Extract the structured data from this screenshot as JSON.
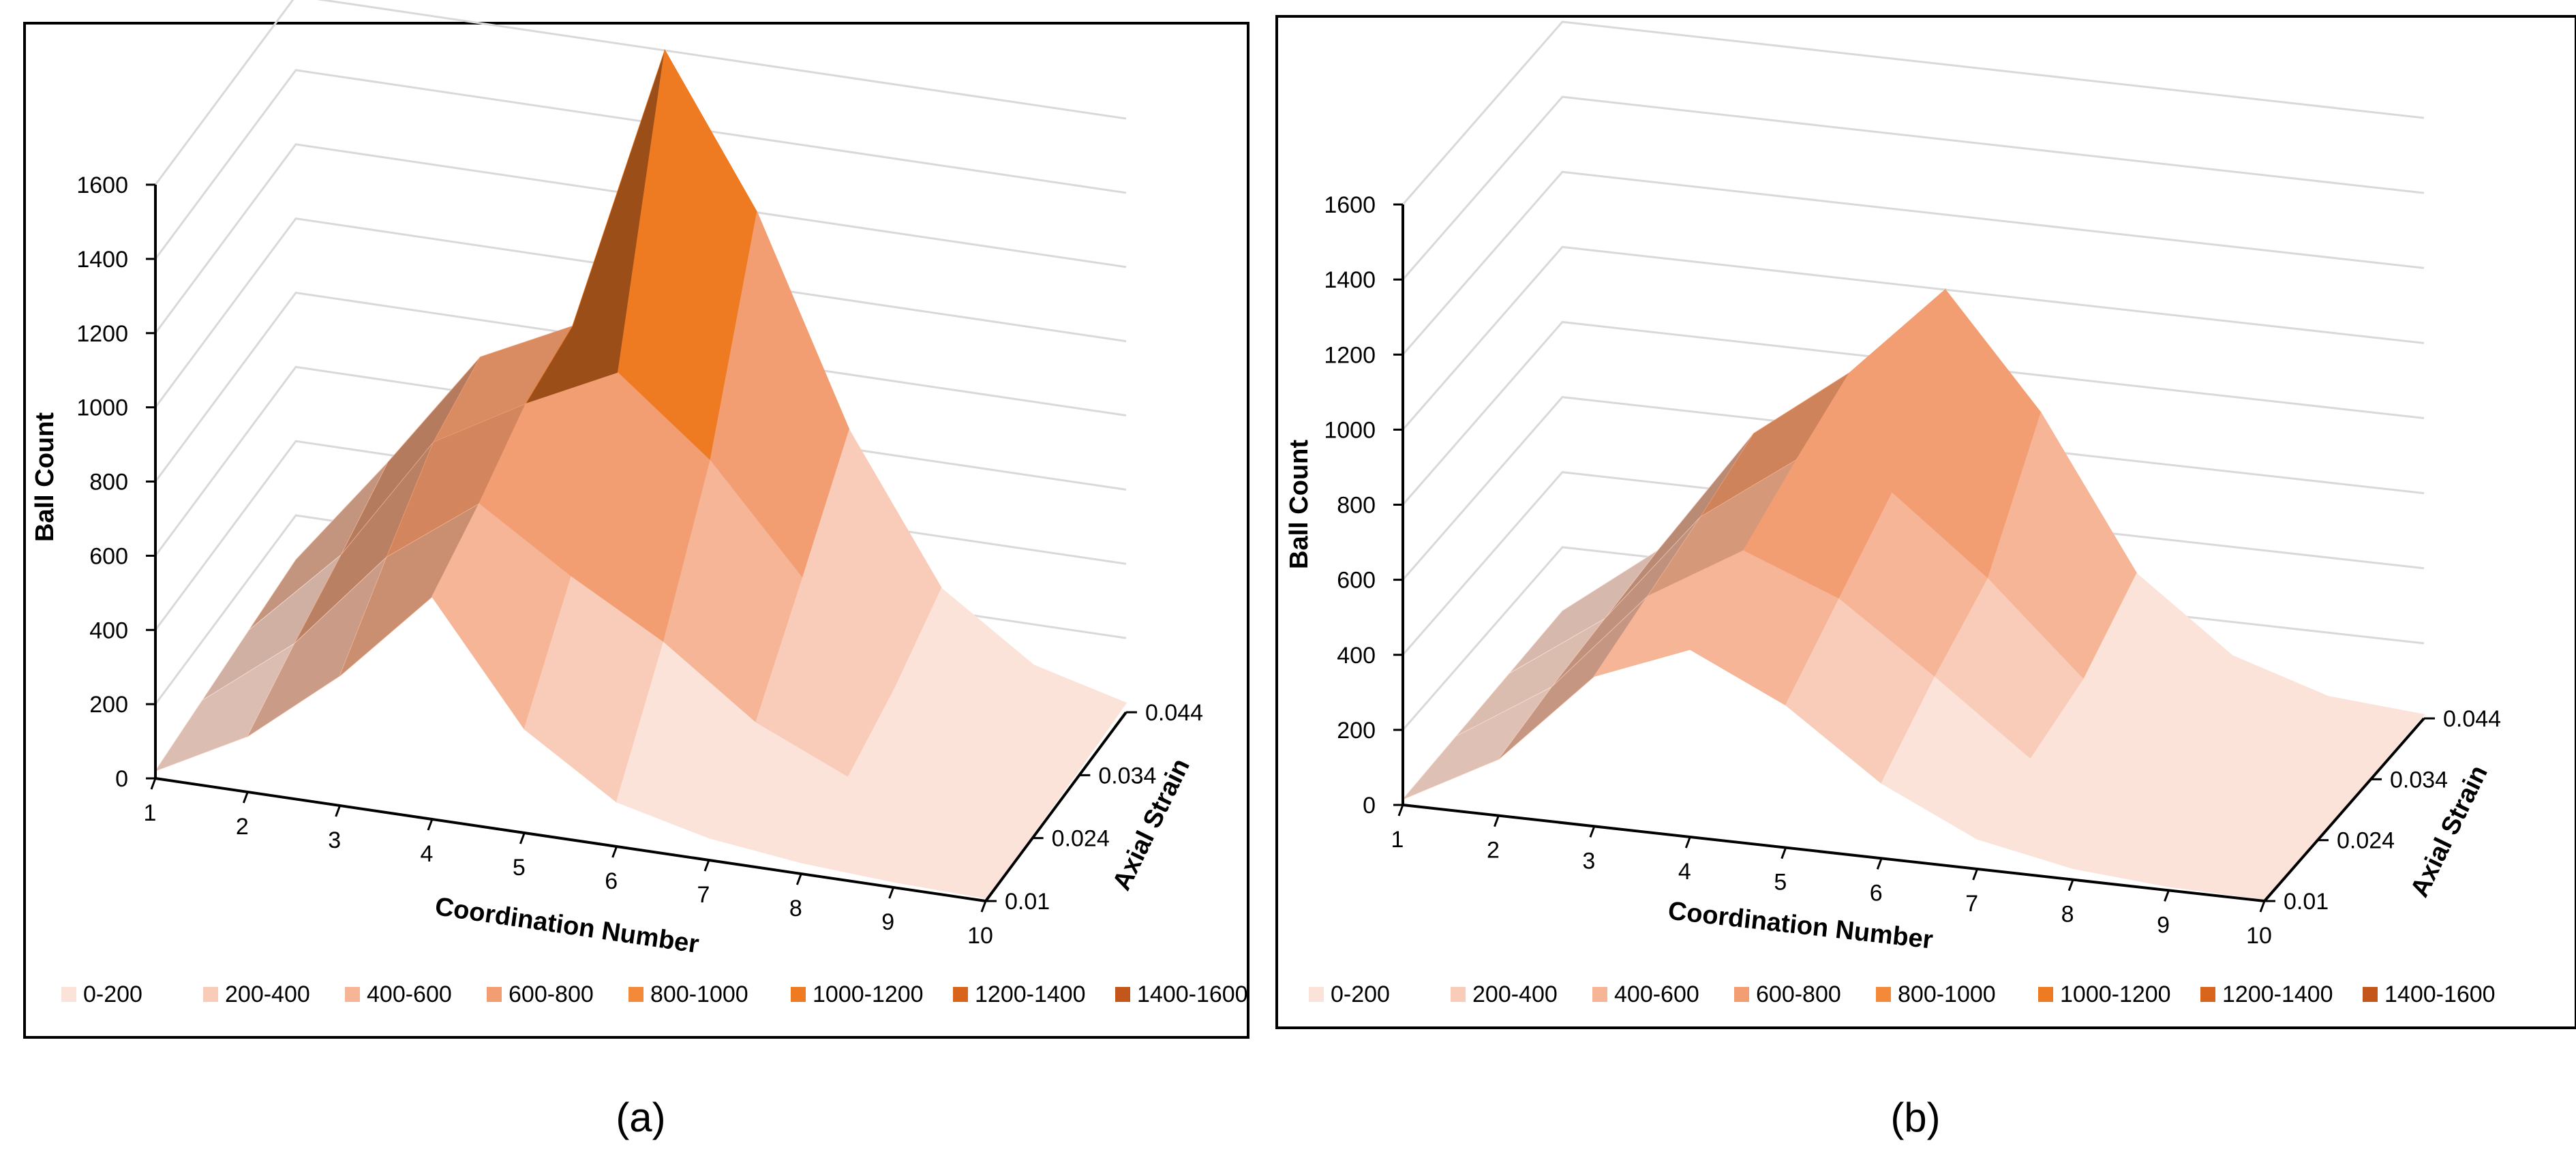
{
  "colors": {
    "band_0_200": "#FCE3DA",
    "band_200_400": "#F9CCB9",
    "band_400_600": "#F5B596",
    "band_600_800": "#F29E72",
    "band_800_1000": "#F28A3A",
    "band_1000_1200": "#EE7A22",
    "band_1200_1400": "#D9651C",
    "band_1400_1600": "#C2561B",
    "frame": "#000000",
    "grid": "#D9D9D9"
  },
  "chart_data": [
    {
      "type": "surface",
      "panel_label": "a",
      "xlabel": "Coordination Number",
      "ylabel": "Ball Count",
      "zlabel": "Axial Strain",
      "x_ticks": [
        "1",
        "2",
        "3",
        "4",
        "5",
        "6",
        "7",
        "8",
        "9",
        "10"
      ],
      "y_ticks": [
        "0",
        "200",
        "400",
        "600",
        "800",
        "1000",
        "1200",
        "1400",
        "1600"
      ],
      "z_ticks": [
        "0.01",
        "0.024",
        "0.034",
        "0.044"
      ],
      "ylim": [
        0,
        1600
      ],
      "legend": [
        "0-200",
        "200-400",
        "400-600",
        "600-800",
        "800-1000",
        "1000-1200",
        "1200-1400",
        "1400-1600"
      ],
      "series": [
        {
          "name": "0.01",
          "values": [
            20,
            150,
            350,
            600,
            280,
            120,
            60,
            30,
            15,
            8
          ]
        },
        {
          "name": "0.024",
          "values": [
            40,
            230,
            500,
            680,
            520,
            380,
            200,
            90,
            30,
            10
          ]
        },
        {
          "name": "0.034",
          "values": [
            60,
            300,
            640,
            780,
            900,
            700,
            420,
            160,
            50,
            15
          ]
        },
        {
          "name": "0.044",
          "values": [
            80,
            380,
            700,
            820,
            1600,
            1200,
            650,
            260,
            90,
            25
          ]
        }
      ]
    },
    {
      "type": "surface",
      "panel_label": "b",
      "xlabel": "Coordination Number",
      "ylabel": "Ball Count",
      "zlabel": "Axial Strain",
      "x_ticks": [
        "1",
        "2",
        "3",
        "4",
        "5",
        "6",
        "7",
        "8",
        "9",
        "10"
      ],
      "y_ticks": [
        "0",
        "200",
        "400",
        "600",
        "800",
        "1000",
        "1200",
        "1400",
        "1600"
      ],
      "z_ticks": [
        "0.01",
        "0.024",
        "0.034",
        "0.044"
      ],
      "ylim": [
        0,
        1600
      ],
      "legend": [
        "0-200",
        "200-400",
        "400-600",
        "600-800",
        "800-1000",
        "1000-1200",
        "1200-1400",
        "1400-1600"
      ],
      "series": [
        {
          "name": "0.01",
          "values": [
            15,
            150,
            400,
            500,
            380,
            200,
            80,
            30,
            10,
            5
          ]
        },
        {
          "name": "0.024",
          "values": [
            20,
            180,
            450,
            600,
            500,
            320,
            130,
            50,
            15,
            6
          ]
        },
        {
          "name": "0.034",
          "values": [
            25,
            200,
            500,
            680,
            620,
            420,
            180,
            70,
            20,
            8
          ]
        },
        {
          "name": "0.044",
          "values": [
            30,
            220,
            560,
            750,
            1000,
            700,
            300,
            110,
            30,
            10
          ]
        }
      ]
    }
  ]
}
